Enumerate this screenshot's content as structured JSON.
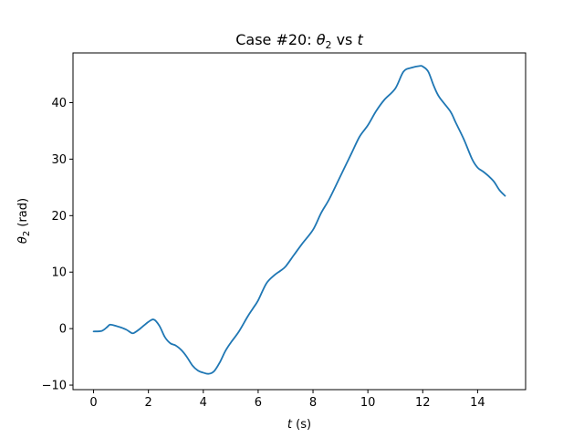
{
  "chart_data": {
    "type": "line",
    "title_prefix": "Case #20: ",
    "title_sym": "θ",
    "title_sub": "2",
    "title_mid": " vs ",
    "title_var": "t",
    "xlabel_var": "t",
    "xlabel_unit": " (s)",
    "ylabel_sym": "θ",
    "ylabel_sub": "2",
    "ylabel_unit": " (rad)",
    "xlim": [
      -0.75,
      15.75
    ],
    "ylim": [
      -10.8,
      48.8
    ],
    "xticks": [
      0,
      2,
      4,
      6,
      8,
      10,
      12,
      14
    ],
    "yticks": [
      -10,
      0,
      10,
      20,
      30,
      40
    ],
    "grid": false,
    "line_color": "#1f77b4",
    "series": [
      {
        "x": [
          0,
          0.3,
          0.5,
          0.6,
          0.8,
          1.0,
          1.2,
          1.4,
          1.5,
          1.7,
          2.0,
          2.2,
          2.4,
          2.6,
          2.8,
          3.0,
          3.2,
          3.4,
          3.6,
          3.8,
          4.0,
          4.2,
          4.4,
          4.6,
          4.8,
          5.0,
          5.3,
          5.6,
          5.8,
          6.0,
          6.3,
          6.6,
          6.8,
          7.0,
          7.3,
          7.6,
          8.0,
          8.3,
          8.6,
          9.0,
          9.4,
          9.7,
          10.0,
          10.3,
          10.6,
          11.0,
          11.3,
          11.6,
          11.9,
          12.0,
          12.2,
          12.4,
          12.6,
          13.0,
          13.2,
          13.5,
          13.8,
          14.0,
          14.2,
          14.4,
          14.6,
          14.8,
          15.0
        ],
        "y": [
          -0.5,
          -0.4,
          0.3,
          0.7,
          0.5,
          0.2,
          -0.2,
          -0.8,
          -0.7,
          0.0,
          1.2,
          1.6,
          0.5,
          -1.5,
          -2.6,
          -3.0,
          -3.8,
          -5.0,
          -6.5,
          -7.4,
          -7.8,
          -8.0,
          -7.5,
          -6.0,
          -4.0,
          -2.5,
          -0.5,
          2.0,
          3.5,
          5.0,
          8.0,
          9.5,
          10.2,
          11.0,
          13.0,
          15.0,
          17.5,
          20.5,
          23.0,
          27.0,
          31.0,
          34.0,
          36.0,
          38.5,
          40.5,
          42.5,
          45.5,
          46.2,
          46.5,
          46.4,
          45.5,
          43.0,
          41.0,
          38.5,
          36.5,
          33.5,
          30.0,
          28.5,
          27.8,
          27.0,
          26.0,
          24.5,
          23.5
        ]
      }
    ]
  }
}
